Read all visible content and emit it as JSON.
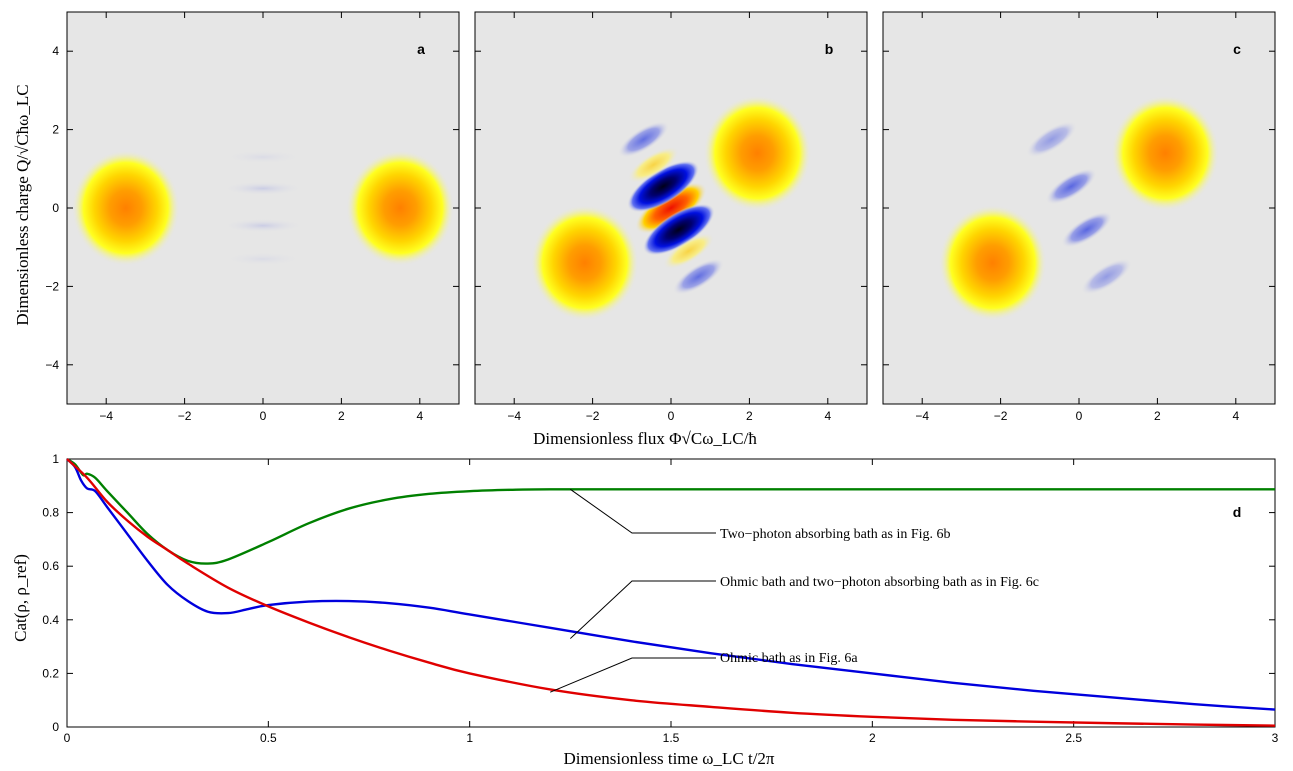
{
  "figure": {
    "top_ylabel": "Dimensionless charge Q/√Cħω_LC",
    "top_xlabel": "Dimensionless flux Φ√Cω_LC/ħ",
    "bottom_ylabel": "Cat(ρ, ρ_ref)",
    "bottom_xlabel": "Dimensionless time ω_LC t/2π"
  },
  "chart_data": [
    {
      "type": "heatmap",
      "panel": "a",
      "xlim": [
        -5,
        5
      ],
      "ylim": [
        -5,
        5
      ],
      "xticks": [
        "−4",
        "−2",
        "0",
        "2",
        "4"
      ],
      "yticks": [
        "−4",
        "−2",
        "0",
        "2",
        "4"
      ],
      "blobs": [
        {
          "x": -3.5,
          "y": 0,
          "sign": 1
        },
        {
          "x": 3.5,
          "y": 0,
          "sign": 1
        }
      ],
      "fringes": [
        {
          "x": 0,
          "y": 0.5,
          "amp": 0.12
        },
        {
          "x": 0,
          "y": -0.45,
          "amp": 0.12
        },
        {
          "x": 0,
          "y": 1.3,
          "amp": 0.05
        },
        {
          "x": 0,
          "y": -1.3,
          "amp": 0.05
        }
      ]
    },
    {
      "type": "heatmap",
      "panel": "b",
      "xlim": [
        -5,
        5
      ],
      "ylim": [
        -5,
        5
      ],
      "xticks": [
        "−4",
        "−2",
        "0",
        "2",
        "4"
      ],
      "yticks": [
        "−4",
        "−2",
        "0",
        "2",
        "4"
      ],
      "blobs": [
        {
          "x": -2.2,
          "y": -1.4,
          "sign": 1
        },
        {
          "x": 2.2,
          "y": 1.4,
          "sign": 1
        }
      ],
      "fringes": [
        {
          "x": 0,
          "y": 0,
          "amp": 1.0,
          "sign": 1
        },
        {
          "x": -0.2,
          "y": 0.55,
          "amp": 1.0,
          "sign": -1
        },
        {
          "x": 0.2,
          "y": -0.55,
          "amp": 1.0,
          "sign": -1
        },
        {
          "x": -0.45,
          "y": 1.1,
          "amp": 0.35,
          "sign": 1
        },
        {
          "x": 0.45,
          "y": -1.1,
          "amp": 0.35,
          "sign": 1
        },
        {
          "x": -0.7,
          "y": 1.75,
          "amp": 0.45,
          "sign": -1
        },
        {
          "x": 0.7,
          "y": -1.75,
          "amp": 0.45,
          "sign": -1
        }
      ]
    },
    {
      "type": "heatmap",
      "panel": "c",
      "xlim": [
        -5,
        5
      ],
      "ylim": [
        -5,
        5
      ],
      "xticks": [
        "−4",
        "−2",
        "0",
        "2",
        "4"
      ],
      "yticks": [
        "−4",
        "−2",
        "0",
        "2",
        "4"
      ],
      "blobs": [
        {
          "x": -2.2,
          "y": -1.4,
          "sign": 1
        },
        {
          "x": 2.2,
          "y": 1.4,
          "sign": 1
        }
      ],
      "fringes": [
        {
          "x": -0.2,
          "y": 0.55,
          "amp": 0.5,
          "sign": -1
        },
        {
          "x": 0.2,
          "y": -0.55,
          "amp": 0.5,
          "sign": -1
        },
        {
          "x": -0.7,
          "y": 1.75,
          "amp": 0.15,
          "sign": -1
        },
        {
          "x": 0.7,
          "y": -1.75,
          "amp": 0.15,
          "sign": -1
        }
      ]
    },
    {
      "type": "line",
      "panel": "d",
      "xlim": [
        0,
        3
      ],
      "ylim": [
        0,
        1
      ],
      "xticks": [
        "0",
        "0.5",
        "1",
        "1.5",
        "2",
        "2.5",
        "3"
      ],
      "xtick_values": [
        0,
        0.5,
        1,
        1.5,
        2,
        2.5,
        3
      ],
      "yticks": [
        "0",
        "0.2",
        "0.4",
        "0.6",
        "0.8",
        "1"
      ],
      "ytick_values": [
        0,
        0.2,
        0.4,
        0.6,
        0.8,
        1
      ],
      "series": [
        {
          "color": "#008000",
          "x": [
            0,
            0.02,
            0.04,
            0.05,
            0.07,
            0.1,
            0.15,
            0.2,
            0.25,
            0.3,
            0.35,
            0.4,
            0.5,
            0.6,
            0.7,
            0.8,
            0.9,
            1.0,
            1.1,
            1.2,
            1.5,
            2.0,
            2.5,
            3.0
          ],
          "y": [
            1.0,
            0.98,
            0.94,
            0.945,
            0.93,
            0.88,
            0.8,
            0.72,
            0.66,
            0.62,
            0.61,
            0.625,
            0.69,
            0.76,
            0.815,
            0.85,
            0.87,
            0.88,
            0.885,
            0.887,
            0.887,
            0.887,
            0.887,
            0.887
          ]
        },
        {
          "color": "#0000dd",
          "x": [
            0,
            0.02,
            0.035,
            0.05,
            0.07,
            0.1,
            0.15,
            0.2,
            0.25,
            0.3,
            0.35,
            0.4,
            0.45,
            0.5,
            0.6,
            0.7,
            0.8,
            0.9,
            1.0,
            1.2,
            1.4,
            1.6,
            1.8,
            2.0,
            2.2,
            2.4,
            2.6,
            2.8,
            3.0
          ],
          "y": [
            1.0,
            0.97,
            0.92,
            0.89,
            0.88,
            0.82,
            0.72,
            0.62,
            0.53,
            0.47,
            0.43,
            0.425,
            0.44,
            0.455,
            0.468,
            0.47,
            0.462,
            0.445,
            0.42,
            0.37,
            0.32,
            0.275,
            0.235,
            0.2,
            0.165,
            0.135,
            0.11,
            0.085,
            0.065
          ]
        },
        {
          "color": "#e00000",
          "x": [
            0,
            0.05,
            0.1,
            0.15,
            0.2,
            0.25,
            0.3,
            0.4,
            0.5,
            0.6,
            0.7,
            0.8,
            0.9,
            1.0,
            1.2,
            1.4,
            1.6,
            1.8,
            2.0,
            2.2,
            2.4,
            2.6,
            2.8,
            3.0
          ],
          "y": [
            1.0,
            0.93,
            0.84,
            0.77,
            0.71,
            0.66,
            0.61,
            0.52,
            0.45,
            0.39,
            0.335,
            0.285,
            0.24,
            0.2,
            0.14,
            0.1,
            0.075,
            0.053,
            0.038,
            0.027,
            0.02,
            0.014,
            0.009,
            0.005
          ]
        }
      ],
      "annotations": [
        {
          "text": "Two−photon absorbing bath as in Fig. 6b",
          "x": 1.25,
          "y": 0.887
        },
        {
          "text": "Ohmic bath and two−photon absorbing bath as in Fig. 6c",
          "x": 1.25,
          "y": 0.33
        },
        {
          "text": "Ohmic bath as in Fig. 6a",
          "x": 1.2,
          "y": 0.13
        }
      ]
    }
  ]
}
